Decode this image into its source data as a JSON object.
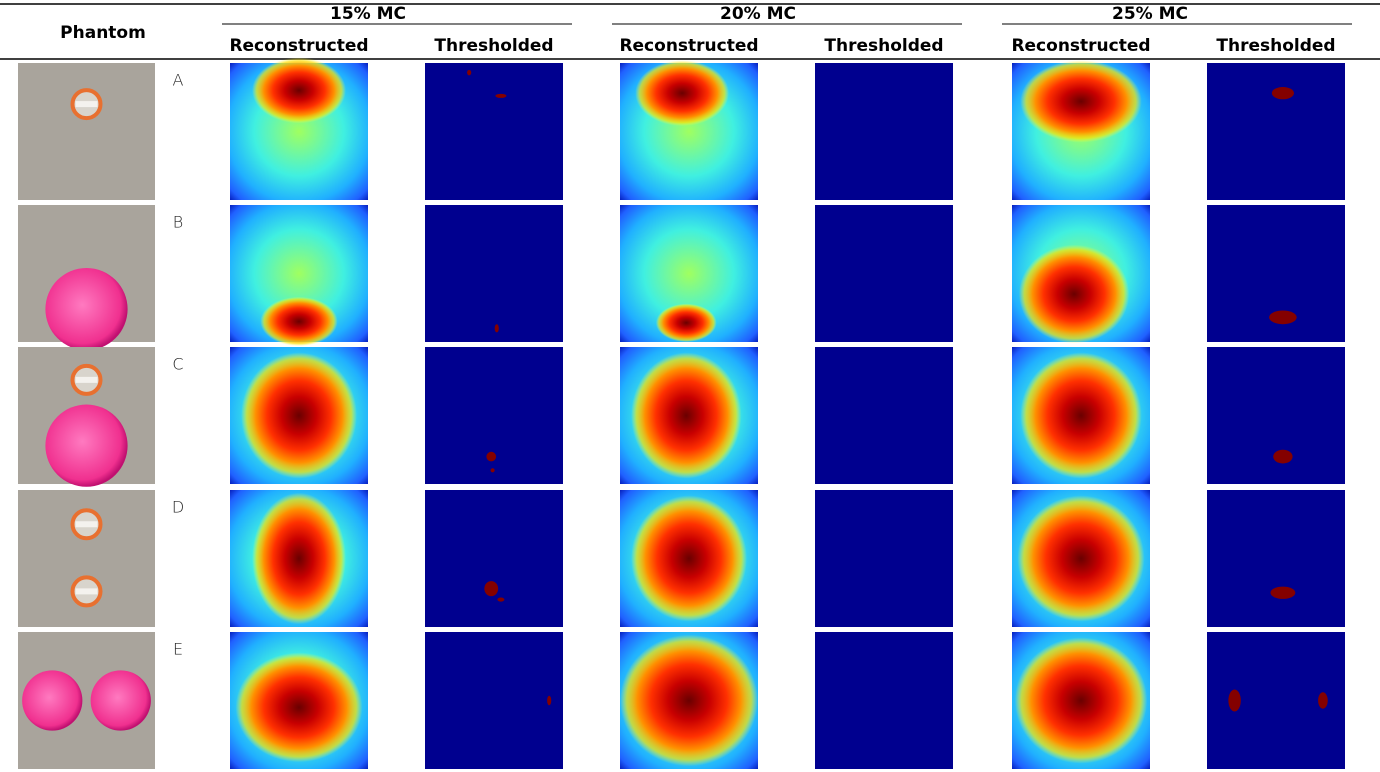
{
  "header": {
    "phantom": "Phantom",
    "groups": [
      "15% MC",
      "20% MC",
      "25% MC"
    ],
    "subheaders": [
      "Reconstructed",
      "Thresholded",
      "Reconstructed",
      "Thresholded",
      "Reconstructed",
      "Thresholded"
    ]
  },
  "rows": [
    {
      "label": "A"
    },
    {
      "label": "B"
    },
    {
      "label": "C"
    },
    {
      "label": "D"
    },
    {
      "label": "E"
    }
  ]
}
